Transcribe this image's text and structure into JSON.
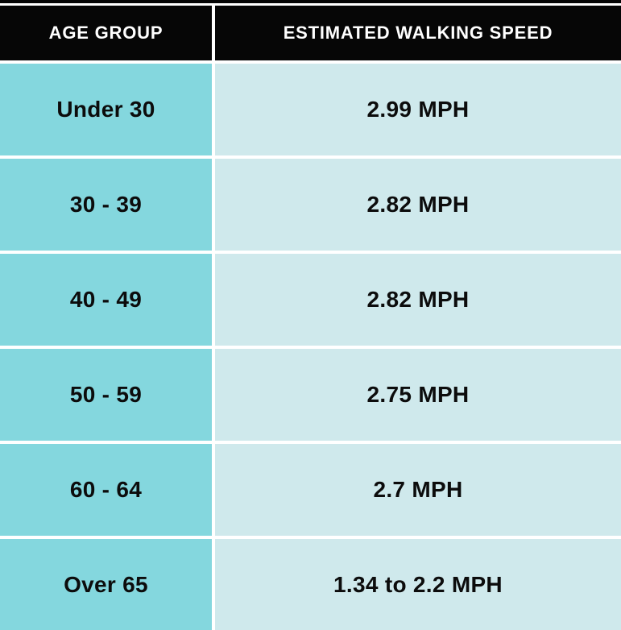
{
  "chart_data": {
    "type": "table",
    "columns": [
      "AGE GROUP",
      "ESTIMATED WALKING SPEED"
    ],
    "rows": [
      {
        "age_group": "Under 30",
        "speed_label": "2.99 MPH",
        "speed_mph": 2.99
      },
      {
        "age_group": "30 - 39",
        "speed_label": "2.82 MPH",
        "speed_mph": 2.82
      },
      {
        "age_group": "40 - 49",
        "speed_label": "2.82 MPH",
        "speed_mph": 2.82
      },
      {
        "age_group": "50 - 59",
        "speed_label": "2.75 MPH",
        "speed_mph": 2.75
      },
      {
        "age_group": "60 - 64",
        "speed_label": "2.7 MPH",
        "speed_mph": 2.7
      },
      {
        "age_group": "Over 65",
        "speed_label": "1.34 to 2.2 MPH",
        "speed_mph_min": 1.34,
        "speed_mph_max": 2.2
      }
    ]
  },
  "colors": {
    "header_bg": "#060606",
    "header_text": "#ffffff",
    "age_column_bg": "#84d7de",
    "speed_column_bg": "#cfe9ec",
    "cell_text": "#0c0c0c",
    "gridline": "#ffffff"
  }
}
